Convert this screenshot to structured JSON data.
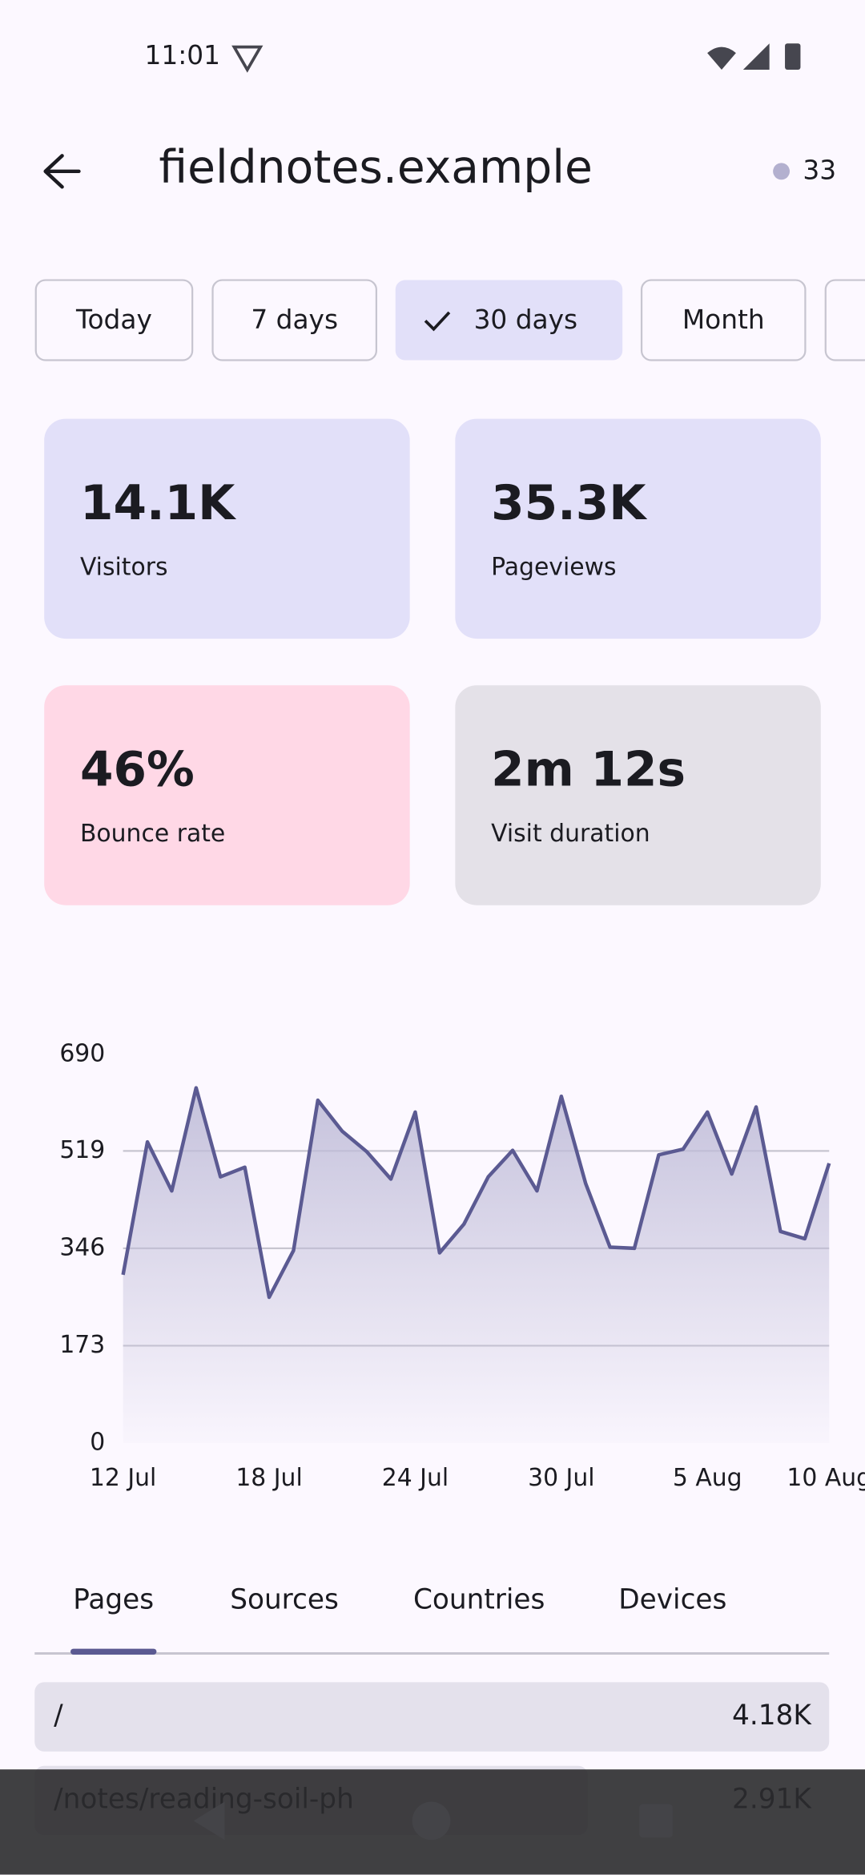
{
  "status_bar": {
    "time": "11:01"
  },
  "header": {
    "title": "fieldnotes.example",
    "live_count": "33"
  },
  "filters": {
    "options": [
      "Today",
      "7 days",
      "30 days",
      "Month"
    ],
    "selected": 2
  },
  "stats": [
    {
      "value": "14.1K",
      "label": "Visitors",
      "color": "#e2e0f9"
    },
    {
      "value": "35.3K",
      "label": "Pageviews",
      "color": "#e2e0f9"
    },
    {
      "value": "46%",
      "label": "Bounce rate",
      "color": "#ffd8e6"
    },
    {
      "value": "2m 12s",
      "label": "Visit duration",
      "color": "#e4e1e8"
    }
  ],
  "chart_data": {
    "type": "area",
    "categories": [
      "12 Jul",
      null,
      null,
      null,
      null,
      null,
      "18 Jul",
      null,
      null,
      null,
      null,
      null,
      "24 Jul",
      null,
      null,
      null,
      null,
      null,
      "30 Jul",
      null,
      null,
      null,
      null,
      null,
      "5 Aug",
      null,
      null,
      null,
      null,
      "10 Aug"
    ],
    "series": [
      {
        "color": "#5b5a92",
        "values": [
          299,
          535,
          448,
          631,
          473,
          490,
          259,
          342,
          609,
          554,
          518,
          469,
          588,
          338,
          389,
          473,
          520,
          448,
          616,
          461,
          348,
          346,
          512,
          522,
          588,
          478,
          597,
          376,
          363,
          497
        ]
      }
    ],
    "ylim": [
      0,
      690
    ],
    "yticks": [
      0,
      173,
      346,
      519,
      690
    ],
    "grid": true
  },
  "tabs": {
    "options": [
      "Pages",
      "Sources",
      "Countries",
      "Devices"
    ],
    "selected": 0
  },
  "list": {
    "rows": [
      {
        "label": "/",
        "value": 4180,
        "value_label": "4.18K"
      },
      {
        "label": "/notes/reading-soil-ph",
        "value": 2910,
        "value_label": "2.91K"
      }
    ]
  }
}
